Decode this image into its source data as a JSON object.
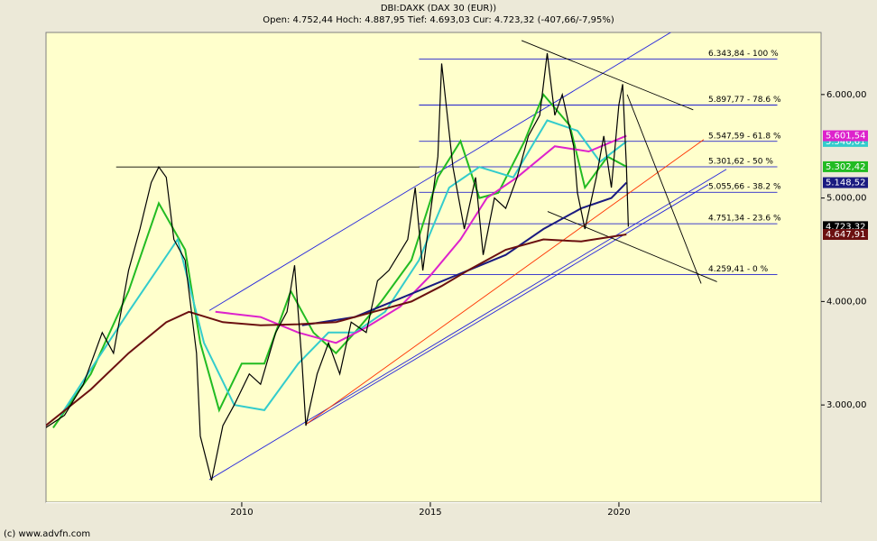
{
  "chart_data": {
    "type": "line",
    "title": "DBI:DAXK (DAX 30 (EUR))",
    "subtitle": "Open: 4.752,44 Hoch: 4.887,95 Tief: 4.693,03 Cur: 4.723,32 (-407,66/-7,95%)",
    "footer": "(c) www.advfn.com",
    "xlim": [
      2004.81,
      2025.36
    ],
    "ylim": [
      2060,
      6600
    ],
    "xticks": [
      2010,
      2015,
      2020
    ],
    "yticks": [
      {
        "value": 3000,
        "label": "3.000,00"
      },
      {
        "value": 4000,
        "label": "4.000,00"
      },
      {
        "value": 5000,
        "label": "5.000,00"
      },
      {
        "value": 6000,
        "label": "6.000,00"
      }
    ],
    "background": "#ffffcc",
    "series": [
      {
        "color": "#000000",
        "x": [
          2004.8,
          2005.3,
          2005.8,
          2006.3,
          2006.6,
          2007.0,
          2007.3,
          2007.6,
          2007.8,
          2008.0,
          2008.2,
          2008.5,
          2008.8,
          2008.9,
          2009.2,
          2009.5,
          2009.8,
          2010.2,
          2010.5,
          2010.9,
          2011.2,
          2011.4,
          2011.6,
          2011.7,
          2012.0,
          2012.3,
          2012.6,
          2012.9,
          2013.3,
          2013.6,
          2013.9,
          2014.4,
          2014.6,
          2014.8,
          2015.2,
          2015.3,
          2015.6,
          2015.9,
          2016.2,
          2016.4,
          2016.7,
          2017.0,
          2017.3,
          2017.6,
          2017.9,
          2018.1,
          2018.3,
          2018.5,
          2018.8,
          2018.9,
          2019.1,
          2019.4,
          2019.6,
          2019.8,
          2020.0,
          2020.1,
          2020.2,
          2020.25
        ],
        "values": [
          2780,
          2900,
          3200,
          3700,
          3500,
          4300,
          4700,
          5150,
          5300,
          5200,
          4600,
          4400,
          3500,
          2700,
          2270,
          2800,
          3000,
          3300,
          3200,
          3700,
          3900,
          4350,
          3400,
          2800,
          3300,
          3600,
          3300,
          3800,
          3700,
          4200,
          4300,
          4600,
          5100,
          4300,
          5400,
          6300,
          5300,
          4700,
          5200,
          4450,
          5000,
          4900,
          5200,
          5600,
          5800,
          6400,
          5800,
          6000,
          5500,
          5050,
          4700,
          5200,
          5600,
          5100,
          5900,
          6100,
          5300,
          4723.32
        ],
        "value_labels": [
          null,
          null,
          null,
          null,
          null,
          null,
          null,
          null,
          null,
          null,
          null,
          null,
          null,
          null,
          null,
          null,
          null,
          null,
          null,
          null,
          null,
          null,
          null,
          null,
          null,
          null,
          null,
          null,
          null,
          null,
          null,
          null,
          null,
          null,
          null,
          null,
          null,
          null,
          null,
          null,
          null,
          null,
          null,
          null,
          null,
          null,
          null,
          null,
          null,
          null,
          null,
          null,
          null,
          null,
          null,
          null,
          null,
          "4.723,32"
        ]
      },
      {
        "color": "#22bb22",
        "x": [
          2005.0,
          2006.0,
          2007.0,
          2007.8,
          2008.5,
          2008.9,
          2009.4,
          2010.0,
          2010.6,
          2011.3,
          2011.9,
          2012.5,
          2013.0,
          2013.7,
          2014.5,
          2015.2,
          2015.8,
          2016.3,
          2016.8,
          2017.5,
          2018.0,
          2018.7,
          2019.1,
          2019.7,
          2020.2
        ],
        "values": [
          2780,
          3300,
          4100,
          4950,
          4500,
          3600,
          2950,
          3400,
          3400,
          4100,
          3700,
          3500,
          3700,
          4000,
          4400,
          5200,
          5550,
          5000,
          5050,
          5550,
          6000,
          5700,
          5100,
          5400,
          5302.42
        ],
        "value_labels": [
          null,
          null,
          null,
          null,
          null,
          null,
          null,
          null,
          null,
          null,
          null,
          null,
          null,
          null,
          null,
          null,
          null,
          null,
          null,
          null,
          null,
          null,
          null,
          null,
          "5.302,42"
        ]
      },
      {
        "color": "#33cccc",
        "x": [
          2005.2,
          2007.0,
          2008.3,
          2009.0,
          2009.8,
          2010.6,
          2011.5,
          2012.3,
          2013.0,
          2013.8,
          2014.7,
          2015.5,
          2016.3,
          2017.2,
          2018.1,
          2018.9,
          2019.5,
          2020.2
        ],
        "values": [
          2900,
          3900,
          4600,
          3600,
          3000,
          2950,
          3400,
          3700,
          3700,
          3900,
          4400,
          5100,
          5300,
          5200,
          5750,
          5650,
          5350,
          5546.61
        ],
        "value_labels": [
          null,
          null,
          null,
          null,
          null,
          null,
          null,
          null,
          null,
          null,
          null,
          null,
          null,
          null,
          null,
          null,
          null,
          "5.546,61"
        ]
      },
      {
        "color": "#dd22cc",
        "x": [
          2009.3,
          2010.5,
          2011.5,
          2012.5,
          2013.3,
          2014.2,
          2015.0,
          2015.8,
          2016.5,
          2017.3,
          2018.3,
          2019.2,
          2020.2
        ],
        "values": [
          3900,
          3850,
          3700,
          3600,
          3750,
          3950,
          4250,
          4600,
          5000,
          5200,
          5500,
          5450,
          5601.54
        ],
        "value_labels": [
          null,
          null,
          null,
          null,
          null,
          null,
          null,
          null,
          null,
          null,
          null,
          null,
          "5.601,54"
        ]
      },
      {
        "color": "#1a1a80",
        "x": [
          2011.6,
          2013.0,
          2014.0,
          2015.0,
          2016.0,
          2017.0,
          2018.0,
          2019.0,
          2019.8,
          2020.2
        ],
        "values": [
          3770,
          3850,
          4000,
          4150,
          4300,
          4450,
          4700,
          4900,
          5000,
          5148.52
        ],
        "value_labels": [
          null,
          null,
          null,
          null,
          null,
          null,
          null,
          null,
          null,
          "5.148,52"
        ]
      },
      {
        "color": "#6b1010",
        "x": [
          2004.8,
          2006.0,
          2007.0,
          2008.0,
          2008.6,
          2009.5,
          2010.5,
          2011.5,
          2012.5,
          2013.5,
          2014.5,
          2015.3,
          2016.0,
          2017.0,
          2018.0,
          2019.0,
          2020.2
        ],
        "values": [
          2800,
          3150,
          3500,
          3800,
          3900,
          3800,
          3770,
          3780,
          3800,
          3900,
          4000,
          4150,
          4300,
          4500,
          4600,
          4580,
          4647.91
        ],
        "value_labels": [
          null,
          null,
          null,
          null,
          null,
          null,
          null,
          null,
          null,
          null,
          null,
          null,
          null,
          null,
          null,
          null,
          "4.647,91"
        ]
      }
    ],
    "fib_range": [
      2014.7,
      2024.2
    ],
    "fib_levels": [
      {
        "value": 6343.84,
        "label": "6.343,84 - 100 %"
      },
      {
        "value": 5897.77,
        "label": "5.897,77 - 78.6 %"
      },
      {
        "value": 5547.59,
        "label": "5.547,59 - 61.8 %"
      },
      {
        "value": 5301.62,
        "label": "5.301,62 - 50 %"
      },
      {
        "value": 5055.66,
        "label": "5.055,66 - 38.2 %"
      },
      {
        "value": 4751.34,
        "label": "4.751,34 - 23.6 %"
      },
      {
        "value": 4259.41,
        "label": "4.259,41 - 0 %"
      }
    ],
    "trend_lines": [
      {
        "color": "#000000",
        "x": [
          2006.67,
          2014.71
        ],
        "y": [
          5300,
          5300
        ]
      },
      {
        "color": "#2222dd",
        "x": [
          2009.14,
          2021.53
        ],
        "y": [
          3913,
          6635
        ]
      },
      {
        "color": "#2222dd",
        "x": [
          2009.14,
          2022.85
        ],
        "y": [
          2278,
          5278
        ]
      },
      {
        "color": "#2222dd",
        "x": [
          2011.72,
          2022.37
        ],
        "y": [
          2817,
          5130
        ]
      },
      {
        "color": "#ff3300",
        "x": [
          2011.72,
          2022.25
        ],
        "y": [
          2817,
          5565
        ]
      },
      {
        "color": "#000000",
        "x": [
          2017.42,
          2021.97
        ],
        "y": [
          6522,
          5852
        ]
      },
      {
        "color": "#000000",
        "x": [
          2018.11,
          2022.6
        ],
        "y": [
          4870,
          4191
        ]
      },
      {
        "color": "#000000",
        "x": [
          2020.22,
          2022.18
        ],
        "y": [
          6000,
          4174
        ]
      }
    ]
  }
}
